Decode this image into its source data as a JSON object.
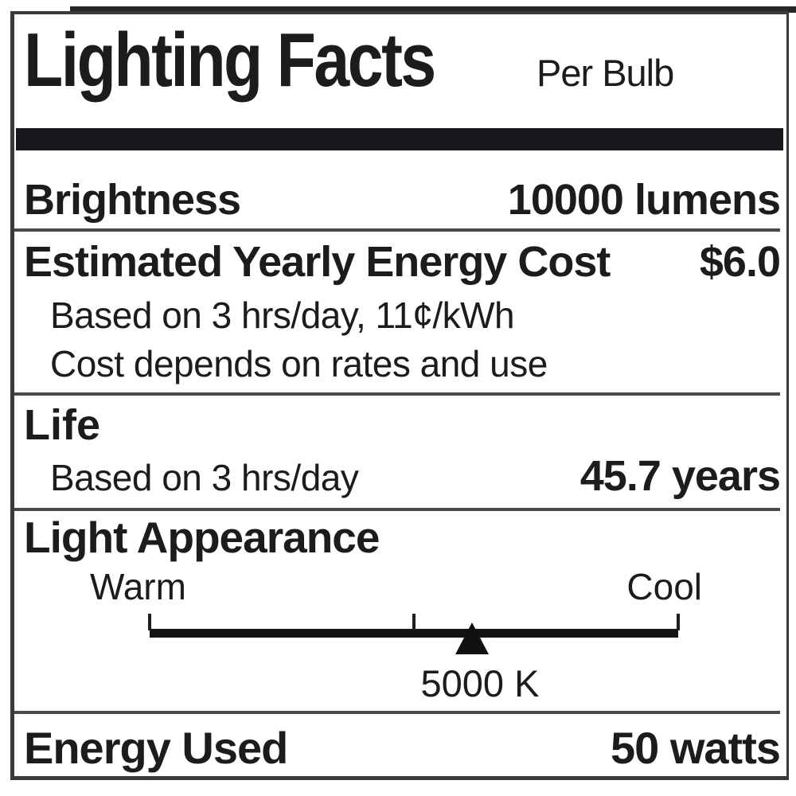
{
  "label": {
    "title": "Lighting Facts",
    "per_unit": "Per Bulb",
    "brightness": {
      "name": "Brightness",
      "value": "10000 lumens"
    },
    "energy_cost": {
      "name": "Estimated Yearly Energy Cost",
      "value": "$6.0",
      "notes": [
        "Based on 3 hrs/day, 11¢/kWh",
        "Cost depends on rates and use"
      ]
    },
    "life": {
      "name": "Life",
      "note": "Based on 3 hrs/day",
      "value": "45.7 years"
    },
    "light_appearance": {
      "name": "Light Appearance",
      "warm_label": "Warm",
      "cool_label": "Cool",
      "marker_value": "5000 K",
      "marker_position_pct": 61,
      "value_position_pct": 62.5,
      "tick_positions_pct": [
        0,
        50,
        100
      ]
    },
    "energy_used": {
      "name": "Energy Used",
      "value": "50 watts"
    },
    "colors": {
      "text": "#1c1c1c",
      "separator_bar": "#17181c",
      "divider": "#4a4a4a",
      "border": "#3a3a3a",
      "background": "#ffffff"
    }
  }
}
